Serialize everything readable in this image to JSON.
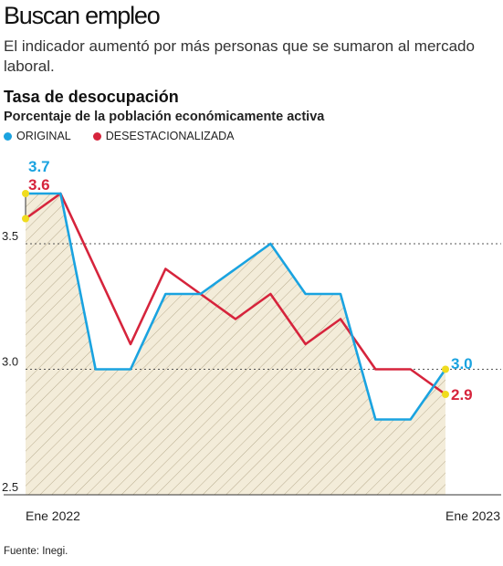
{
  "header": {
    "headline": "Buscan empleo",
    "deck": "El indicador aumentó por más personas que se sumaron al mercado laboral."
  },
  "chart_data": {
    "type": "line",
    "title": "Tasa de desocupación",
    "subtitle": "Porcentaje de la población económicamente activa",
    "x_labels": [
      "Ene 2022",
      "Ene 2023"
    ],
    "x": [
      0,
      1,
      2,
      3,
      4,
      5,
      6,
      7,
      8,
      9,
      10,
      11,
      12
    ],
    "ylim": [
      2.5,
      3.7
    ],
    "yticks": [
      2.5,
      3.0,
      3.5
    ],
    "ytick_labels": [
      "2.5",
      "3.0",
      "3.5"
    ],
    "grid": "dotted at 3.0 and 3.5",
    "series": [
      {
        "name": "ORIGINAL",
        "color": "#1aa3e0",
        "values": [
          3.7,
          3.7,
          3.0,
          3.0,
          3.3,
          3.3,
          3.4,
          3.5,
          3.3,
          3.3,
          2.8,
          2.8,
          3.0
        ],
        "first_label": "3.7",
        "last_label": "3.0"
      },
      {
        "name": "DESESTACIONALIZADA",
        "color": "#d6243c",
        "values": [
          3.6,
          3.7,
          3.4,
          3.1,
          3.4,
          3.3,
          3.2,
          3.3,
          3.1,
          3.2,
          3.0,
          3.0,
          2.9
        ],
        "first_label": "3.6",
        "last_label": "2.9"
      }
    ],
    "legend_position": "top-left",
    "marker_color": "#f0dc1e",
    "fill_color": "#f3ecd9"
  },
  "footer": {
    "source": "Fuente: Inegi."
  }
}
